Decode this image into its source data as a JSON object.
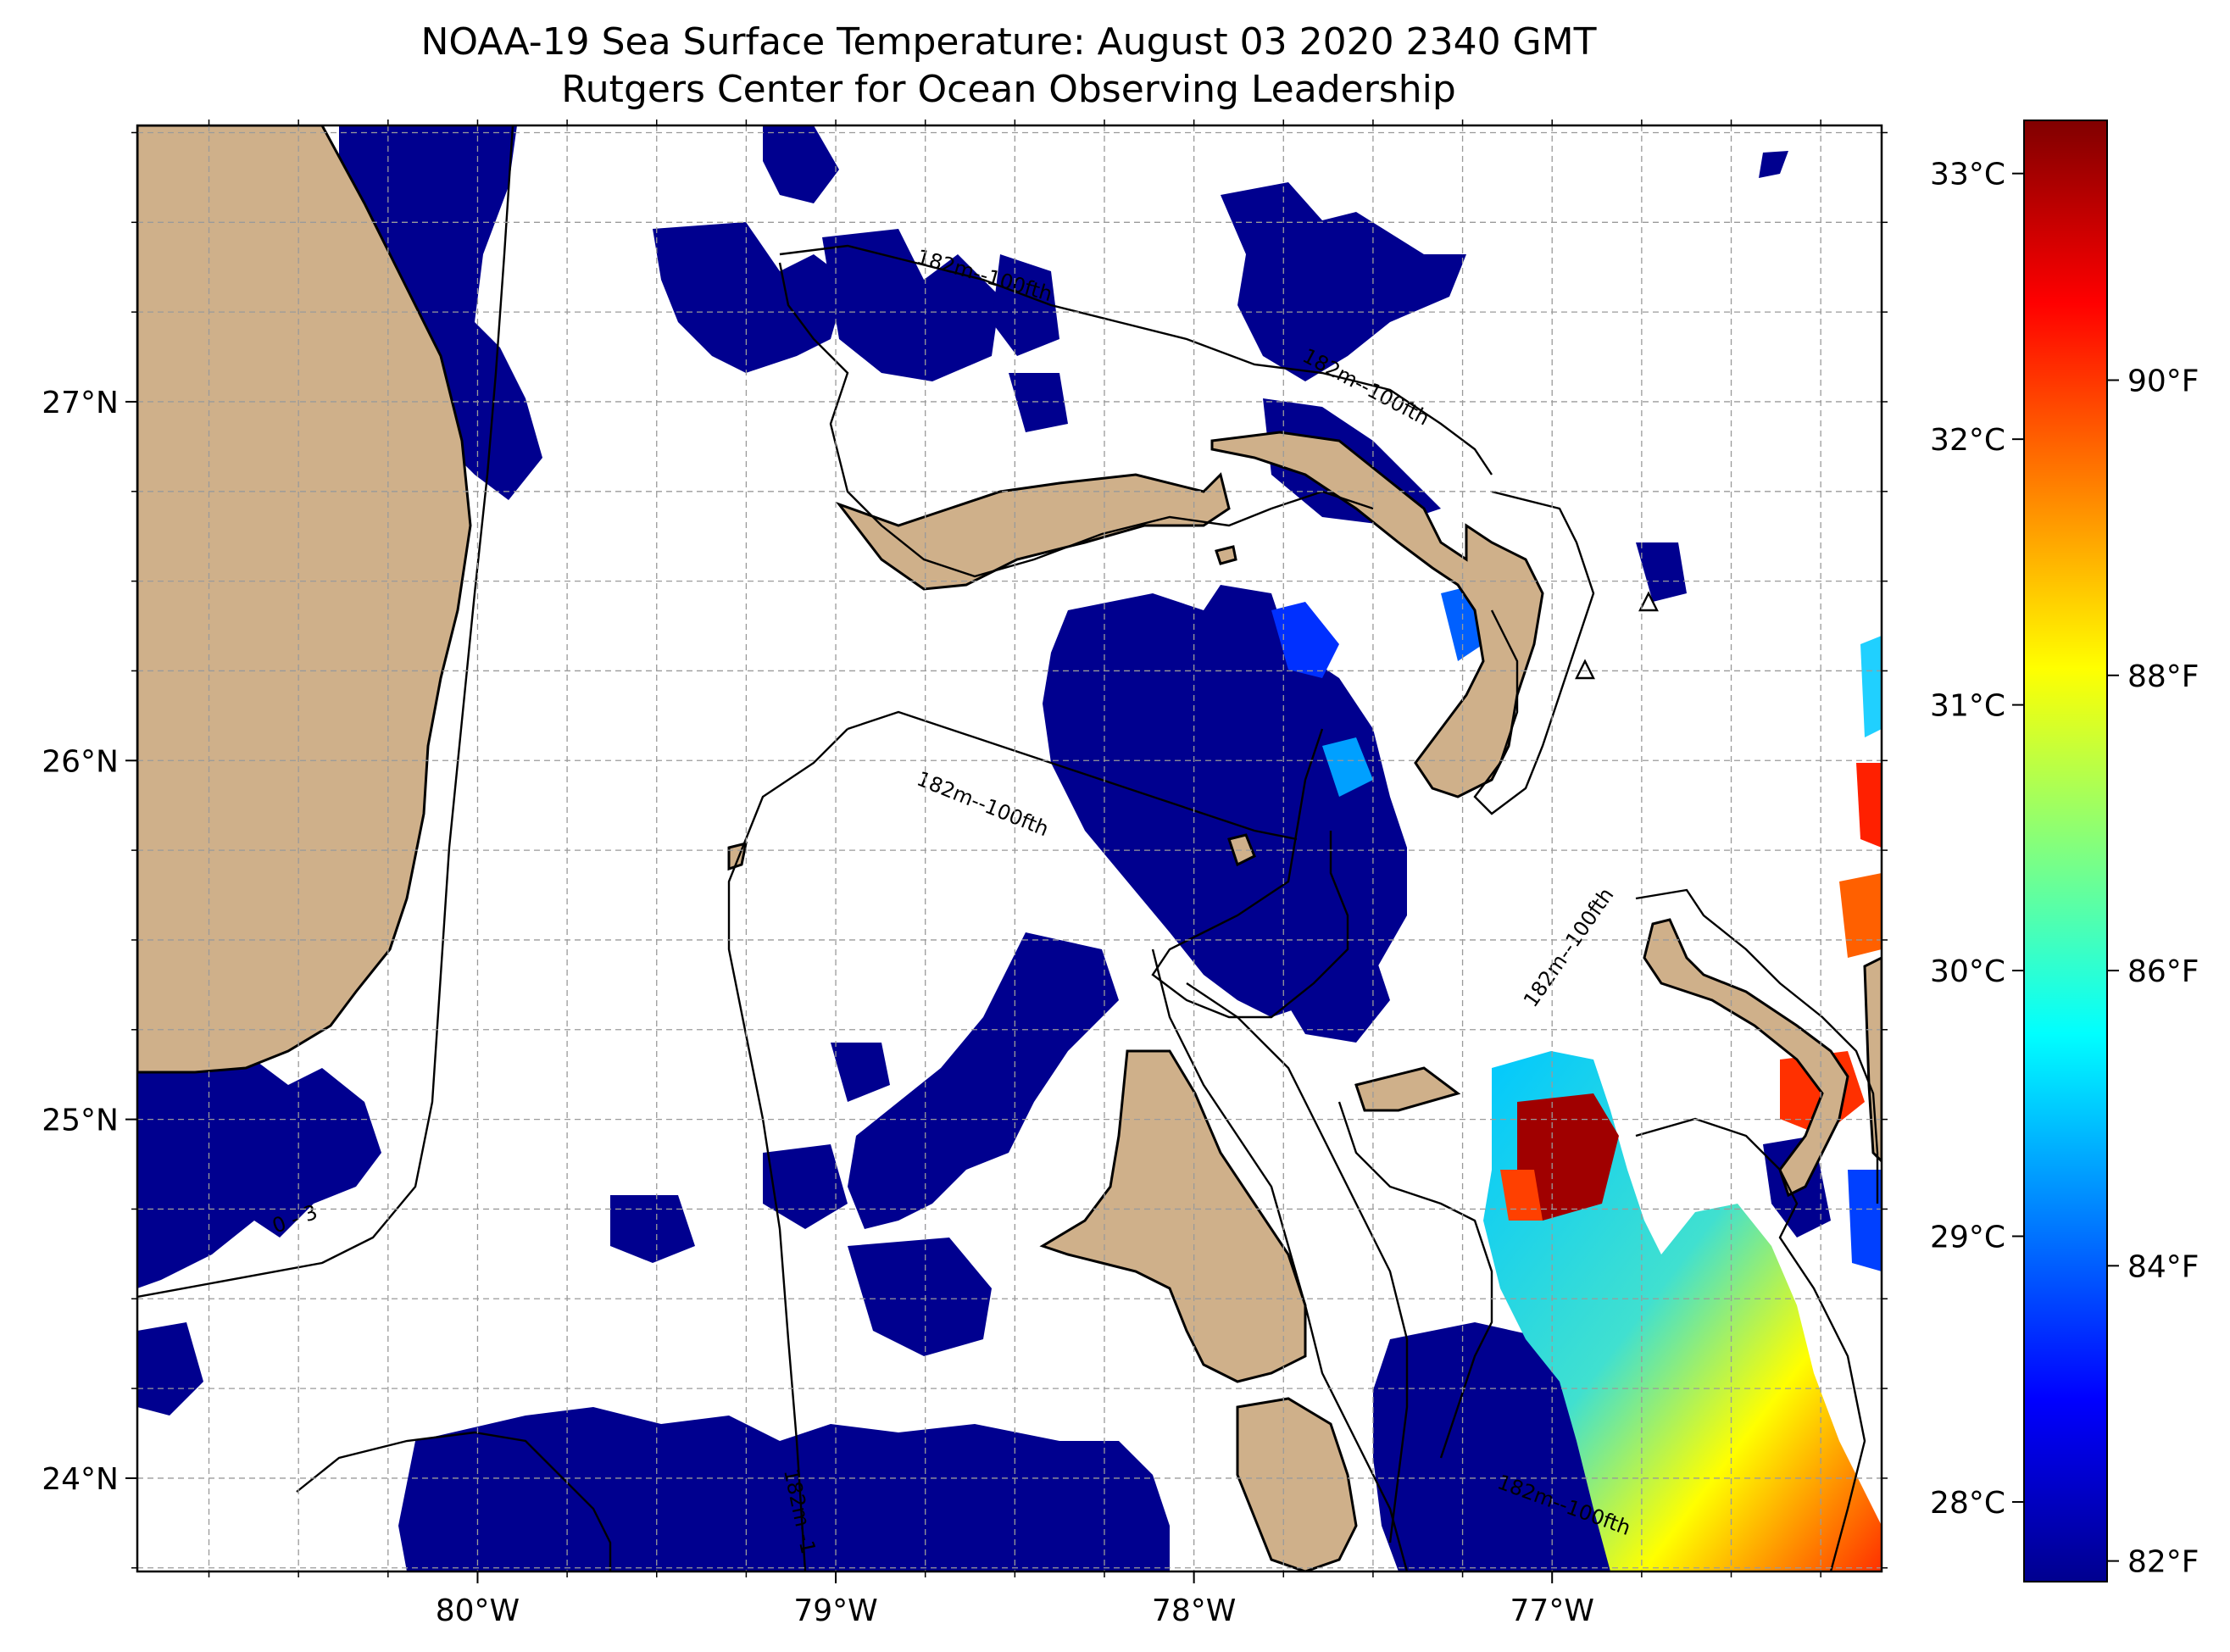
{
  "figure": {
    "title_line_1": "NOAA-19 Sea Surface Temperature: August 03 2020 2340 GMT",
    "title_line_2": "Rutgers Center for Ocean Observing Leadership"
  },
  "map": {
    "projection": "PlateCarree",
    "lon_range": [
      -80.95,
      -76.08
    ],
    "lat_range": [
      23.74,
      27.77
    ],
    "lon_ticks": [
      {
        "value": -80,
        "label": "80°W"
      },
      {
        "value": -79,
        "label": "79°W"
      },
      {
        "value": -78,
        "label": "78°W"
      },
      {
        "value": -77,
        "label": "77°W"
      }
    ],
    "lat_ticks": [
      {
        "value": 27,
        "label": "27°N"
      },
      {
        "value": 26,
        "label": "26°N"
      },
      {
        "value": 25,
        "label": "25°N"
      },
      {
        "value": 24,
        "label": "24°N"
      }
    ],
    "minor_grid_step_deg": 0.25,
    "gridlines": true,
    "land_color": "#cfb08a",
    "cloud_mask_color": "#ffffff",
    "contour_labels": [
      "182m--100fth",
      "182m--100fth",
      "182m--100fth",
      "182m--100fth",
      "182m--100fth",
      "182m--1",
      "0 - 3"
    ]
  },
  "colorbar": {
    "colormap": "jet",
    "celsius_range": [
      27.7,
      33.2
    ],
    "celsius_ticks": [
      {
        "value": 28,
        "label": "28°C"
      },
      {
        "value": 29,
        "label": "29°C"
      },
      {
        "value": 30,
        "label": "30°C"
      },
      {
        "value": 31,
        "label": "31°C"
      },
      {
        "value": 32,
        "label": "32°C"
      },
      {
        "value": 33,
        "label": "33°C"
      }
    ],
    "fahrenheit_ticks": [
      {
        "value": 82,
        "label": "82°F"
      },
      {
        "value": 84,
        "label": "84°F"
      },
      {
        "value": 86,
        "label": "86°F"
      },
      {
        "value": 88,
        "label": "88°F"
      },
      {
        "value": 90,
        "label": "90°F"
      }
    ],
    "colors": [
      "#00008f",
      "#0000ff",
      "#0080ff",
      "#00ffff",
      "#80ff80",
      "#ffff00",
      "#ff8000",
      "#ff0000",
      "#800000"
    ]
  }
}
